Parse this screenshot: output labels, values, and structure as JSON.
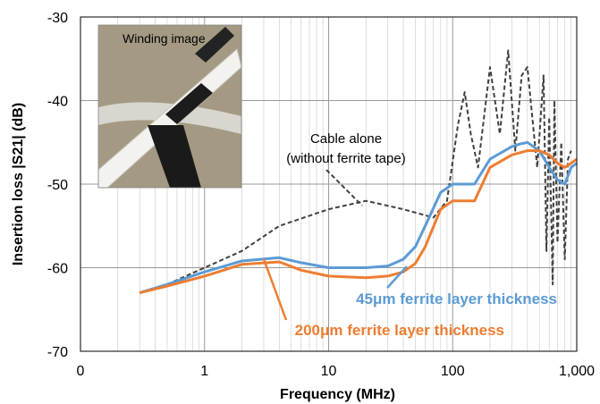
{
  "chart_data": {
    "type": "line",
    "title": "",
    "xlabel": "Frequency (MHz)",
    "ylabel": "Insertion loss |S21| (dB)",
    "xscale": "log",
    "xlim": [
      0.1,
      1000
    ],
    "ylim": [
      -70,
      -30
    ],
    "grid": "on (major and minor log gridlines)",
    "x_tick_labels": [
      "0",
      "1",
      "10",
      "100",
      "1,000"
    ],
    "y_tick_labels": [
      "-30",
      "-40",
      "-50",
      "-60",
      "-70"
    ],
    "inset_label": "Winding image",
    "annotation": {
      "line1": "Cable alone",
      "line2": "(without ferrite tape)"
    },
    "series": [
      {
        "name": "Cable alone (without ferrite tape)",
        "color": "#404040",
        "style": "dashed",
        "x": [
          0.3,
          0.5,
          1,
          2,
          4,
          10,
          20,
          40,
          70,
          90,
          110,
          125,
          140,
          160,
          200,
          240,
          280,
          320,
          360,
          400,
          480,
          540,
          570,
          600,
          640,
          660,
          700,
          750,
          800,
          850,
          900
        ],
        "y": [
          -63,
          -62,
          -60,
          -58,
          -55,
          -53,
          -52,
          -53,
          -54,
          -52,
          -43,
          -39,
          -44,
          -48,
          -36,
          -44,
          -34,
          -46,
          -37,
          -36,
          -48,
          -37,
          -58,
          -42,
          -62,
          -40,
          -57,
          -45,
          -59,
          -47,
          -46
        ]
      },
      {
        "name": "45μm ferrite layer thickness",
        "color": "#5b9bd5",
        "style": "solid",
        "x": [
          0.3,
          0.5,
          1,
          2,
          4,
          6,
          10,
          20,
          30,
          40,
          50,
          60,
          80,
          100,
          120,
          150,
          200,
          300,
          350,
          400,
          500,
          600,
          700,
          800,
          900,
          1000
        ],
        "y": [
          -63,
          -62,
          -60.5,
          -59.2,
          -58.8,
          -59.4,
          -60,
          -60,
          -59.8,
          -59,
          -57.5,
          -55,
          -51,
          -50,
          -50,
          -50,
          -47,
          -45.5,
          -45.2,
          -45,
          -46,
          -48,
          -49.5,
          -50,
          -48,
          -47.5
        ]
      },
      {
        "name": "200μm ferrite layer thickness",
        "color": "#ed7d31",
        "style": "solid",
        "x": [
          0.3,
          0.5,
          1,
          2,
          4,
          6,
          10,
          20,
          30,
          40,
          50,
          60,
          80,
          100,
          120,
          150,
          200,
          300,
          400,
          500,
          600,
          700,
          800,
          900,
          1000
        ],
        "y": [
          -63,
          -62.2,
          -61,
          -59.6,
          -59.3,
          -60.3,
          -61,
          -61.2,
          -61,
          -60.5,
          -59.5,
          -57.5,
          -53,
          -52,
          -52,
          -52,
          -48,
          -46.5,
          -46,
          -46,
          -46.5,
          -47.5,
          -48,
          -47.5,
          -47
        ]
      }
    ]
  }
}
